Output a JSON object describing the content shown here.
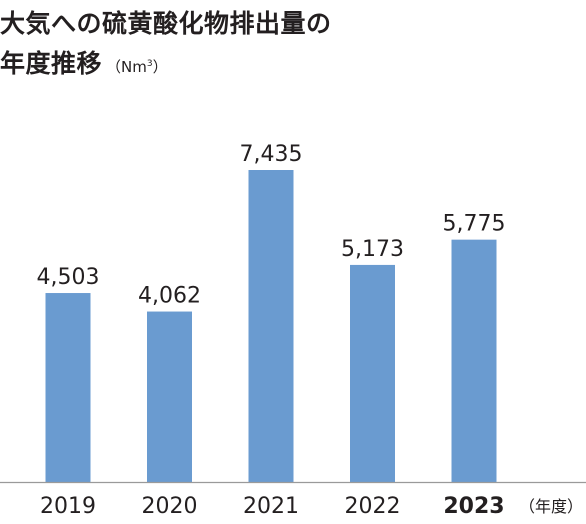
{
  "title": {
    "line1": "大気への硫黄酸化物排出量の",
    "line2": "年度推移",
    "unit_prefix": "（Nm",
    "unit_sup": "3",
    "unit_suffix": "）"
  },
  "chart_data": {
    "type": "bar",
    "categories": [
      "2019",
      "2020",
      "2021",
      "2022",
      "2023"
    ],
    "values": [
      4503,
      4062,
      7435,
      5173,
      5775
    ],
    "value_labels": [
      "4,503",
      "4,062",
      "7,435",
      "5,173",
      "5,775"
    ],
    "highlight_category": "2023",
    "x_unit_label": "（年度）",
    "ylim": [
      0,
      8500
    ],
    "grid": false,
    "bar_color": "#6a9bd0",
    "axis_color": "#9a9a9a"
  }
}
